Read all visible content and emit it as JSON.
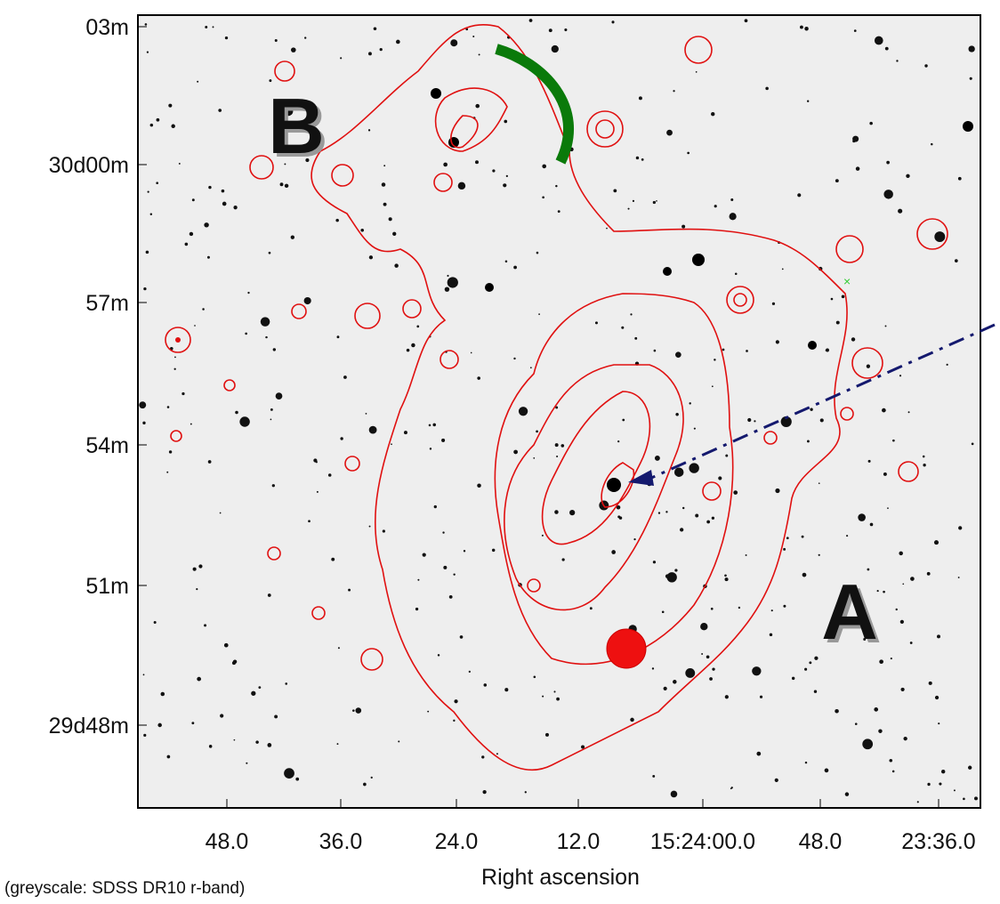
{
  "figure": {
    "yticks": [
      "03m",
      "30d00m",
      "57m",
      "54m",
      "51m",
      "29d48m"
    ],
    "xticks": [
      "48.0",
      "36.0",
      "24.0",
      "12.0",
      "15:24:00.0",
      "48.0",
      "23:36.0"
    ],
    "xlabel": "Right ascension",
    "caption": "(greyscale: SDSS DR10 r-band)",
    "labels": [
      "A",
      "B"
    ]
  }
}
